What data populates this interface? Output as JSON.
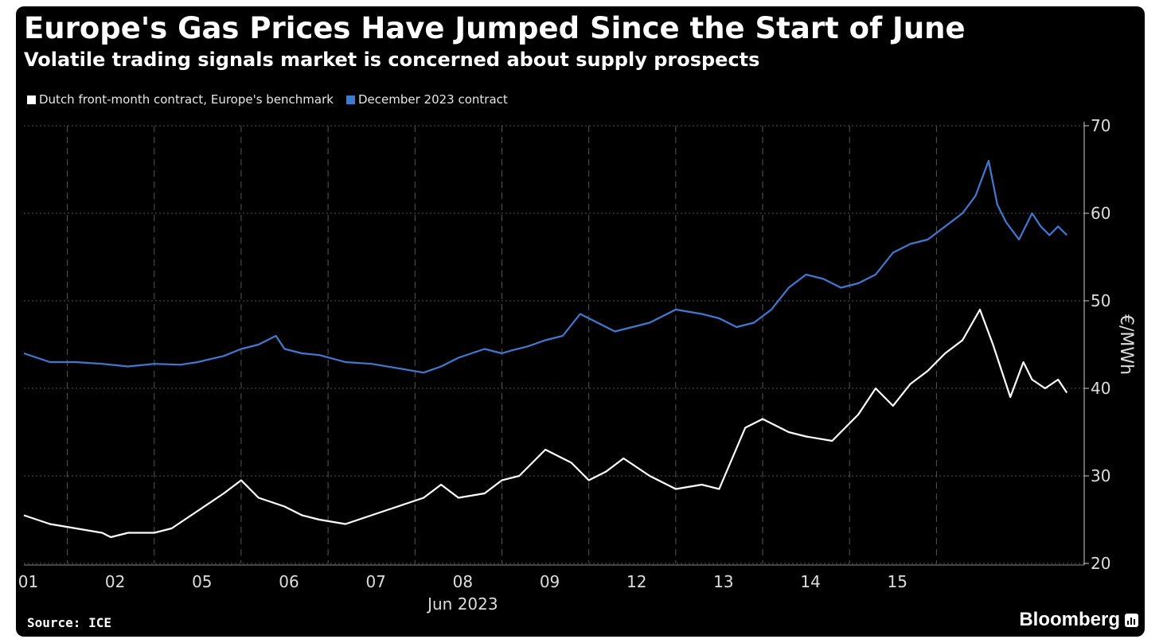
{
  "header": {
    "title": "Europe's Gas Prices Have Jumped Since the Start of June",
    "subtitle": "Volatile trading signals market is concerned about supply prospects"
  },
  "footer": {
    "source": "Source: ICE",
    "brand": "Bloomberg"
  },
  "colors": {
    "background": "#000000",
    "dutch": "#ffffff",
    "december": "#3a7bd5",
    "grid": "#555555"
  },
  "chart_data": {
    "type": "line",
    "xlabel": "Jun 2023",
    "ylabel": "€/MWh",
    "ylim": [
      20,
      70
    ],
    "y_ticks": [
      20,
      30,
      40,
      50,
      60,
      70
    ],
    "x_ticks": [
      "01",
      "02",
      "05",
      "06",
      "07",
      "08",
      "09",
      "12",
      "13",
      "14",
      "15"
    ],
    "y_axis_side": "right",
    "grid": true,
    "legend_placement": "top-left",
    "series": [
      {
        "name": "Dutch front-month contract, Europe's benchmark",
        "color": "#ffffff",
        "x": [
          0.0,
          0.3,
          0.6,
          0.9,
          1.0,
          1.2,
          1.5,
          1.7,
          2.0,
          2.3,
          2.5,
          2.7,
          2.85,
          3.0,
          3.2,
          3.4,
          3.7,
          4.0,
          4.3,
          4.6,
          4.8,
          5.0,
          5.3,
          5.5,
          5.7,
          6.0,
          6.3,
          6.5,
          6.7,
          6.9,
          7.2,
          7.5,
          7.8,
          8.0,
          8.3,
          8.5,
          8.8,
          9.0,
          9.3,
          9.6,
          9.8,
          10.0,
          10.2,
          10.4,
          10.6,
          10.8,
          11.0,
          11.15,
          11.25,
          11.35,
          11.5,
          11.6,
          11.75,
          11.9,
          12.0
        ],
        "values": [
          25.5,
          24.5,
          24.0,
          23.5,
          23.0,
          23.5,
          23.5,
          24.0,
          26.0,
          28.0,
          29.5,
          27.5,
          27.0,
          26.5,
          25.5,
          25.0,
          24.5,
          25.5,
          26.5,
          27.5,
          29.0,
          27.5,
          28.0,
          29.5,
          30.0,
          33.0,
          31.5,
          29.5,
          30.5,
          32.0,
          30.0,
          28.5,
          29.0,
          28.5,
          35.5,
          36.5,
          35.0,
          34.5,
          34.0,
          37.0,
          40.0,
          38.0,
          40.5,
          42.0,
          44.0,
          45.5,
          49.0,
          45.0,
          42.0,
          39.0,
          43.0,
          41.0,
          40.0,
          41.0,
          39.5
        ]
      },
      {
        "name": "December 2023 contract",
        "color": "#3a7bd5",
        "x": [
          0.0,
          0.3,
          0.6,
          0.9,
          1.2,
          1.5,
          1.8,
          2.0,
          2.3,
          2.5,
          2.7,
          2.9,
          3.0,
          3.2,
          3.4,
          3.7,
          4.0,
          4.3,
          4.6,
          4.8,
          5.0,
          5.3,
          5.5,
          5.6,
          5.8,
          6.0,
          6.2,
          6.4,
          6.6,
          6.8,
          7.0,
          7.2,
          7.5,
          7.8,
          8.0,
          8.2,
          8.4,
          8.6,
          8.8,
          9.0,
          9.2,
          9.4,
          9.6,
          9.8,
          10.0,
          10.2,
          10.4,
          10.6,
          10.8,
          10.95,
          11.1,
          11.2,
          11.3,
          11.45,
          11.6,
          11.7,
          11.8,
          11.9,
          12.0
        ],
        "values": [
          44.0,
          43.0,
          43.0,
          42.8,
          42.5,
          42.8,
          42.7,
          43.0,
          43.7,
          44.5,
          45.0,
          46.0,
          44.5,
          44.0,
          43.8,
          43.0,
          42.8,
          42.3,
          41.8,
          42.5,
          43.5,
          44.5,
          44.0,
          44.3,
          44.8,
          45.5,
          46.0,
          48.5,
          47.5,
          46.5,
          47.0,
          47.5,
          49.0,
          48.5,
          48.0,
          47.0,
          47.5,
          49.0,
          51.5,
          53.0,
          52.5,
          51.5,
          52.0,
          53.0,
          55.5,
          56.5,
          57.0,
          58.5,
          60.0,
          62.0,
          66.0,
          61.0,
          59.0,
          57.0,
          60.0,
          58.5,
          57.5,
          58.5,
          57.5
        ]
      }
    ]
  }
}
